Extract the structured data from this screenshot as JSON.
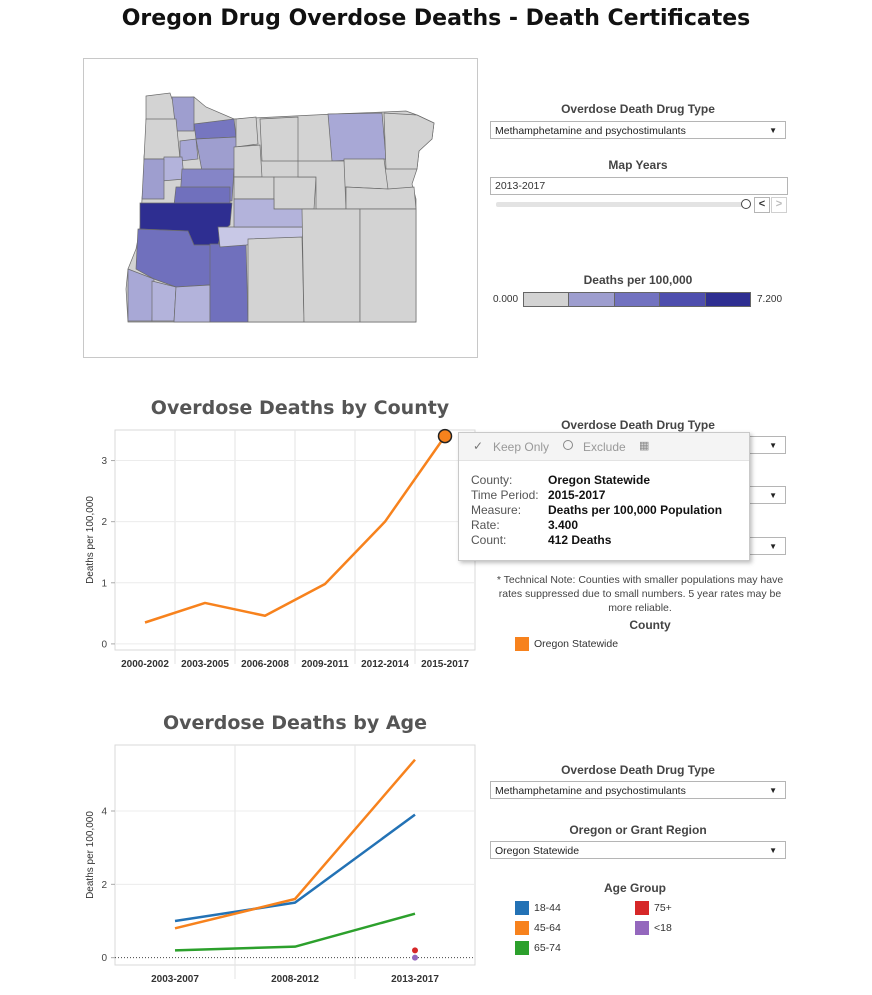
{
  "page_title": "Oregon Drug Overdose Deaths - Death Certificates",
  "colors": {
    "scale_min": "#d3d3d3",
    "scale_max": "#2e2e91",
    "series_orange": "#f7821d",
    "series_blue": "#2372b5",
    "series_green": "#2ca02c",
    "series_red": "#d62728",
    "series_purple": "#9467bd"
  },
  "map_controls": {
    "drug_type_label": "Overdose Death Drug Type",
    "drug_type_value": "Methamphetamine and psychostimulants",
    "years_label": "Map Years",
    "years_value": "2013-2017",
    "slider_fraction": 1.0,
    "scale_label": "Deaths per 100,000",
    "scale_min": "0.000",
    "scale_max": "7.200"
  },
  "county_section": {
    "drug_type_label": "Overdose Death Drug Type",
    "tech_note": "* Technical Note: Counties with smaller populations may have rates suppressed due to small numbers. 5 year rates may be more reliable.",
    "legend_title": "County",
    "legend_items": [
      {
        "label": "Oregon Statewide",
        "color": "#f7821d"
      }
    ]
  },
  "tooltip": {
    "keep_only": "Keep Only",
    "exclude": "Exclude",
    "rows": [
      {
        "key": "County:",
        "value": "Oregon Statewide"
      },
      {
        "key": "Time Period:",
        "value": "2015-2017"
      },
      {
        "key": "Measure:",
        "value": "Deaths per 100,000 Population"
      },
      {
        "key": "Rate:",
        "value": "3.400"
      },
      {
        "key": "Count:",
        "value": "412 Deaths"
      }
    ]
  },
  "age_controls": {
    "drug_type_label": "Overdose Death Drug Type",
    "drug_type_value": "Methamphetamine and psychostimulants",
    "region_label": "Oregon or Grant Region",
    "region_value": "Oregon Statewide",
    "legend_title": "Age Group",
    "legend_items": [
      {
        "label": "18-44",
        "color": "#2372b5"
      },
      {
        "label": "75+",
        "color": "#d62728"
      },
      {
        "label": "45-64",
        "color": "#f7821d"
      },
      {
        "label": "<18",
        "color": "#9467bd"
      },
      {
        "label": "65-74",
        "color": "#2ca02c"
      }
    ]
  },
  "chart_data": [
    {
      "type": "line",
      "title": "Overdose Deaths by County",
      "xlabel": "",
      "ylabel": "Deaths per 100,000",
      "categories": [
        "2000-2002",
        "2003-2005",
        "2006-2008",
        "2009-2011",
        "2012-2014",
        "2015-2017"
      ],
      "yticks": [
        0,
        1,
        2,
        3
      ],
      "ylim": [
        -0.1,
        3.5
      ],
      "series": [
        {
          "name": "Oregon Statewide",
          "color": "#f7821d",
          "values": [
            0.35,
            0.67,
            0.46,
            0.98,
            2.0,
            3.4
          ]
        }
      ],
      "highlight": {
        "series": 0,
        "index": 5
      }
    },
    {
      "type": "line",
      "title": "Overdose Deaths by Age",
      "xlabel": "",
      "ylabel": "Deaths per 100,000",
      "categories": [
        "2003-2007",
        "2008-2012",
        "2013-2017"
      ],
      "yticks": [
        0,
        2,
        4
      ],
      "ylim": [
        -0.2,
        5.8
      ],
      "series": [
        {
          "name": "18-44",
          "color": "#2372b5",
          "values": [
            1.0,
            1.5,
            3.9
          ]
        },
        {
          "name": "45-64",
          "color": "#f7821d",
          "values": [
            0.8,
            1.6,
            5.4
          ]
        },
        {
          "name": "65-74",
          "color": "#2ca02c",
          "values": [
            0.2,
            0.3,
            1.2
          ]
        },
        {
          "name": "75+",
          "color": "#d62728",
          "values": [
            null,
            null,
            0.2
          ]
        },
        {
          "name": "<18",
          "color": "#9467bd",
          "values": [
            null,
            null,
            0.0
          ]
        }
      ]
    }
  ]
}
